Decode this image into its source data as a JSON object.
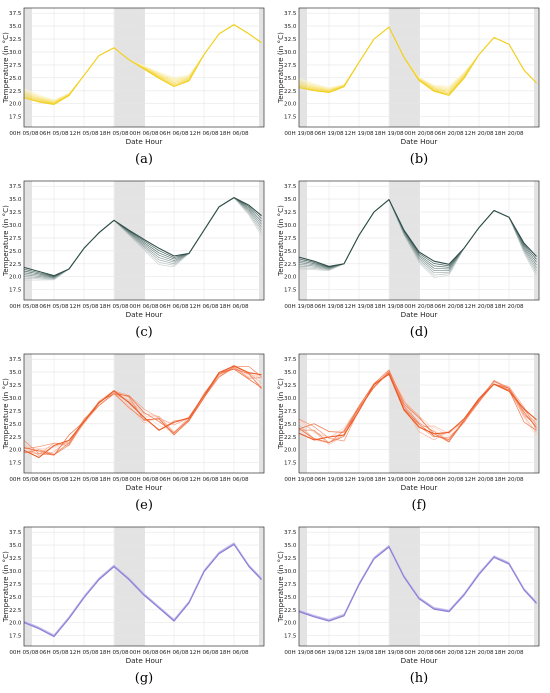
{
  "common": {
    "xlabel": "Date Hour",
    "ylabel": "Temperature (in °C)",
    "yticks": [
      "17.5",
      "20.0",
      "22.5",
      "25.0",
      "27.5",
      "30.0",
      "32.5",
      "35.0",
      "37.5"
    ]
  },
  "xtick_sets": {
    "left": [
      "00H 05/08",
      "06H 05/08",
      "12H 05/08",
      "18H 05/08",
      "00H 06/08",
      "06H 06/08",
      "12H 06/08",
      "18H 06/08"
    ],
    "right": [
      "00H 19/08",
      "06H 19/08",
      "12H 19/08",
      "18H 19/08",
      "00H 20/08",
      "06H 20/08",
      "12H 20/08",
      "18H 20/08"
    ]
  },
  "panels": [
    {
      "label": "(a)",
      "color": "#f2cf1d",
      "set": "left",
      "kind": "fan"
    },
    {
      "label": "(b)",
      "color": "#f2cf1d",
      "set": "right",
      "kind": "fan"
    },
    {
      "label": "(c)",
      "color": "#2f4f4a",
      "set": "left",
      "kind": "gradient"
    },
    {
      "label": "(d)",
      "color": "#2f4f4a",
      "set": "right",
      "kind": "gradient"
    },
    {
      "label": "(e)",
      "color": "#ec5a26",
      "set": "left",
      "kind": "noisy"
    },
    {
      "label": "(f)",
      "color": "#ec5a26",
      "set": "right",
      "kind": "noisy"
    },
    {
      "label": "(g)",
      "color": "#8d7fd6",
      "set": "left",
      "kind": "tight"
    },
    {
      "label": "(h)",
      "color": "#8d7fd6",
      "set": "right",
      "kind": "tight"
    }
  ],
  "chart_data": [
    {
      "type": "line",
      "panel": "(a)",
      "xlabel": "Date Hour",
      "ylabel": "Temperature (in °C)",
      "ylim": [
        15.5,
        38.5
      ],
      "x": [
        "00H 05/08",
        "03H 05/08",
        "06H 05/08",
        "09H 05/08",
        "12H 05/08",
        "15H 05/08",
        "18H 05/08",
        "21H 05/08",
        "00H 06/08",
        "03H 06/08",
        "06H 06/08",
        "09H 06/08",
        "12H 06/08",
        "15H 06/08",
        "18H 06/08",
        "21H 06/08",
        "23H 06/08"
      ],
      "series": [
        {
          "values": [
            22.0,
            21.0,
            20.3,
            21.8,
            25.5,
            29.3,
            30.8,
            28.5,
            27.0,
            25.5,
            24.2,
            25.0,
            29.5,
            33.5,
            35.3,
            33.5,
            31.8
          ]
        }
      ],
      "grid": true
    },
    {
      "type": "line",
      "panel": "(b)",
      "xlabel": "Date Hour",
      "ylabel": "Temperature (in °C)",
      "ylim": [
        15.5,
        38.5
      ],
      "x": [
        "00H 19/08",
        "03H 19/08",
        "06H 19/08",
        "09H 19/08",
        "12H 19/08",
        "15H 19/08",
        "18H 19/08",
        "21H 19/08",
        "00H 20/08",
        "03H 20/08",
        "06H 20/08",
        "09H 20/08",
        "12H 20/08",
        "15H 20/08",
        "18H 20/08",
        "21H 20/08",
        "23H 20/08"
      ],
      "series": [
        {
          "values": [
            24.0,
            23.2,
            22.6,
            23.5,
            28.0,
            32.5,
            34.8,
            29.0,
            24.8,
            23.0,
            22.5,
            25.5,
            29.5,
            32.8,
            31.5,
            26.5,
            24.0
          ]
        }
      ],
      "grid": true
    },
    {
      "type": "line",
      "panel": "(c)",
      "xlabel": "Date Hour",
      "ylabel": "Temperature (in °C)",
      "ylim": [
        15.5,
        38.5
      ],
      "x": [
        "00H 05/08",
        "03H 05/08",
        "06H 05/08",
        "09H 05/08",
        "12H 05/08",
        "15H 05/08",
        "18H 05/08",
        "21H 05/08",
        "00H 06/08",
        "03H 06/08",
        "06H 06/08",
        "09H 06/08",
        "12H 06/08",
        "15H 06/08",
        "18H 06/08",
        "21H 06/08",
        "23H 06/08"
      ],
      "series": [
        {
          "values": [
            21.8,
            21.0,
            20.2,
            21.5,
            25.5,
            28.5,
            30.9,
            29.0,
            27.2,
            25.5,
            24.0,
            24.5,
            29.0,
            33.5,
            35.3,
            33.8,
            31.8
          ]
        }
      ],
      "grid": true
    },
    {
      "type": "line",
      "panel": "(d)",
      "xlabel": "Date Hour",
      "ylabel": "Temperature (in °C)",
      "ylim": [
        15.5,
        38.5
      ],
      "x": [
        "00H 19/08",
        "03H 19/08",
        "06H 19/08",
        "09H 19/08",
        "12H 19/08",
        "15H 19/08",
        "18H 19/08",
        "21H 19/08",
        "00H 20/08",
        "03H 20/08",
        "06H 20/08",
        "09H 20/08",
        "12H 20/08",
        "15H 20/08",
        "18H 20/08",
        "21H 20/08",
        "23H 20/08"
      ],
      "series": [
        {
          "values": [
            23.8,
            23.0,
            22.0,
            22.5,
            28.0,
            32.5,
            34.9,
            29.0,
            24.8,
            23.0,
            22.4,
            25.5,
            29.5,
            32.8,
            31.5,
            26.5,
            23.9
          ]
        }
      ],
      "grid": true
    },
    {
      "type": "line",
      "panel": "(e)",
      "xlabel": "Date Hour",
      "ylabel": "Temperature (in °C)",
      "ylim": [
        15.5,
        38.5
      ],
      "x": [
        "00H 05/08",
        "03H 05/08",
        "06H 05/08",
        "09H 05/08",
        "12H 05/08",
        "15H 05/08",
        "18H 05/08",
        "21H 05/08",
        "00H 06/08",
        "03H 06/08",
        "06H 06/08",
        "09H 06/08",
        "12H 06/08",
        "15H 06/08",
        "18H 06/08",
        "21H 06/08",
        "23H 06/08"
      ],
      "series": [
        {
          "values": [
            20.5,
            20.0,
            20.5,
            22.0,
            25.5,
            29.0,
            31.0,
            29.0,
            26.5,
            25.0,
            24.0,
            26.0,
            30.5,
            34.5,
            36.0,
            35.0,
            33.0
          ]
        }
      ],
      "grid": true
    },
    {
      "type": "line",
      "panel": "(f)",
      "xlabel": "Date Hour",
      "ylabel": "Temperature (in °C)",
      "ylim": [
        15.5,
        38.5
      ],
      "x": [
        "00H 19/08",
        "03H 19/08",
        "06H 19/08",
        "09H 19/08",
        "12H 19/08",
        "15H 19/08",
        "18H 19/08",
        "21H 19/08",
        "00H 20/08",
        "03H 20/08",
        "06H 20/08",
        "09H 20/08",
        "12H 20/08",
        "15H 20/08",
        "18H 20/08",
        "21H 20/08",
        "23H 20/08"
      ],
      "series": [
        {
          "values": [
            24.5,
            23.5,
            22.5,
            23.0,
            28.0,
            32.5,
            35.0,
            29.0,
            25.0,
            23.3,
            22.8,
            25.5,
            29.5,
            33.0,
            31.8,
            26.8,
            24.2
          ]
        }
      ],
      "grid": true
    },
    {
      "type": "line",
      "panel": "(g)",
      "xlabel": "Date Hour",
      "ylabel": "Temperature (in °C)",
      "ylim": [
        15.5,
        38.5
      ],
      "x": [
        "00H 05/08",
        "03H 05/08",
        "06H 05/08",
        "09H 05/08",
        "12H 05/08",
        "15H 05/08",
        "18H 05/08",
        "21H 05/08",
        "00H 06/08",
        "03H 06/08",
        "06H 06/08",
        "09H 06/08",
        "12H 06/08",
        "15H 06/08",
        "18H 06/08",
        "21H 06/08",
        "23H 06/08"
      ],
      "series": [
        {
          "values": [
            20.2,
            19.0,
            17.5,
            21.0,
            25.0,
            28.5,
            31.0,
            28.5,
            25.5,
            23.0,
            20.5,
            24.0,
            30.0,
            33.5,
            35.3,
            31.0,
            28.5
          ]
        }
      ],
      "grid": true
    },
    {
      "type": "line",
      "panel": "(h)",
      "xlabel": "Date Hour",
      "ylabel": "Temperature (in °C)",
      "ylim": [
        15.5,
        38.5
      ],
      "x": [
        "00H 19/08",
        "03H 19/08",
        "06H 19/08",
        "09H 19/08",
        "12H 19/08",
        "15H 19/08",
        "18H 19/08",
        "21H 19/08",
        "00H 20/08",
        "03H 20/08",
        "06H 20/08",
        "09H 20/08",
        "12H 20/08",
        "15H 20/08",
        "18H 20/08",
        "21H 20/08",
        "23H 20/08"
      ],
      "series": [
        {
          "values": [
            22.3,
            21.3,
            20.5,
            21.5,
            27.5,
            32.5,
            34.8,
            29.0,
            24.8,
            22.8,
            22.3,
            25.5,
            29.5,
            32.8,
            31.5,
            26.5,
            23.9
          ]
        }
      ],
      "grid": true
    }
  ]
}
